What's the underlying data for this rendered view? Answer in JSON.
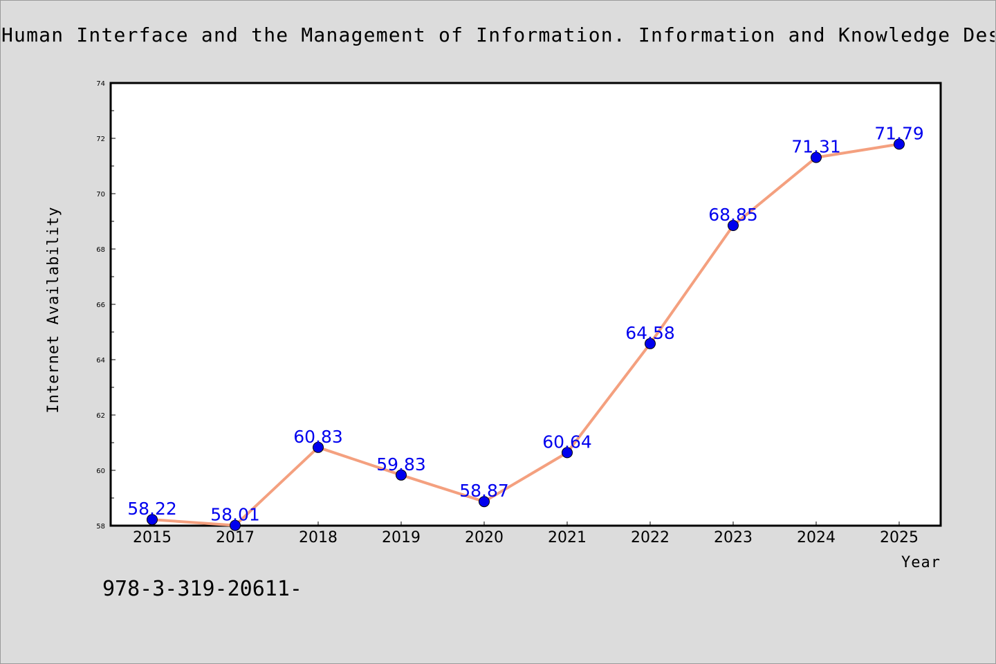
{
  "title": "Human Interface and the Management of Information. Information and Knowledge Design and Evaluation",
  "footer_note": "978-3-319-20611-",
  "colors": {
    "background": "#dcdcdc",
    "plot_background": "#ffffff",
    "line": "#f4a07f",
    "marker": "#0000ee",
    "data_label": "#0000ee"
  },
  "chart_data": {
    "type": "line",
    "title": "Human Interface and the Management of Information. Information and Knowledge Design and Evaluation",
    "xlabel": "Year",
    "ylabel": "Internet Availability",
    "categories": [
      "2015",
      "2017",
      "2018",
      "2019",
      "2020",
      "2021",
      "2022",
      "2023",
      "2024",
      "2025"
    ],
    "series": [
      {
        "values": [
          58.22,
          58.01,
          60.83,
          59.83,
          58.87,
          60.64,
          64.58,
          68.85,
          71.31,
          71.79
        ],
        "labels": [
          "58.22",
          "58.01",
          "60.83",
          "59.83",
          "58.87",
          "60.64",
          "64.58",
          "68.85",
          "71.31",
          "71.79"
        ]
      }
    ],
    "ylim": [
      58,
      74
    ],
    "yticks": [
      58,
      60,
      62,
      64,
      66,
      68,
      70,
      72,
      74
    ],
    "y_minor_step": 1,
    "grid": false,
    "legend": "none"
  }
}
